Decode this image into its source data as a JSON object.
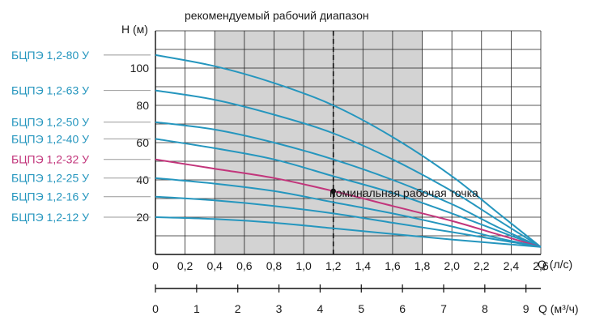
{
  "chart_data": {
    "type": "line",
    "title": "рекомендуемый рабочий диапазон",
    "ylabel": "H (м)",
    "xlabel": "Q (л/с)",
    "x2label": "Q (м³/ч)",
    "xlim": [
      0,
      2.6
    ],
    "ylim": [
      0,
      120
    ],
    "x_ticks": [
      "0",
      "0,2",
      "0,4",
      "0,6",
      "0,8",
      "1,0",
      "1,2",
      "1,4",
      "1,6",
      "1,8",
      "2,0",
      "2,2",
      "2,4",
      "2,6"
    ],
    "y_ticks": [
      "20",
      "40",
      "60",
      "80",
      "100"
    ],
    "y_tick_values": [
      20,
      40,
      60,
      80,
      100
    ],
    "x2_ticks": [
      "0",
      "1",
      "2",
      "3",
      "4",
      "5",
      "6",
      "7",
      "8",
      "9"
    ],
    "recommended_range": [
      0.4,
      1.8
    ],
    "nominal_flow": 1.2,
    "nominal_point": {
      "x": 1.2,
      "y": 34,
      "label": "номинальная рабочая точка"
    },
    "grid": true,
    "colors": {
      "series": "#2596be",
      "highlight": "#c2357b",
      "range_fill": "#d3d3d3"
    },
    "series": [
      {
        "name": "БЦПЭ 1,2-80 У",
        "label_y": 107,
        "highlight": false,
        "points": [
          [
            0,
            107
          ],
          [
            0.4,
            101
          ],
          [
            0.8,
            92
          ],
          [
            1.2,
            80
          ],
          [
            1.6,
            63
          ],
          [
            2.0,
            42
          ],
          [
            2.3,
            23
          ],
          [
            2.6,
            4
          ]
        ]
      },
      {
        "name": "БЦПЭ 1,2-63 У",
        "label_y": 88,
        "highlight": false,
        "points": [
          [
            0,
            88
          ],
          [
            0.4,
            83
          ],
          [
            0.8,
            75
          ],
          [
            1.2,
            65
          ],
          [
            1.6,
            51
          ],
          [
            2.0,
            34
          ],
          [
            2.3,
            19
          ],
          [
            2.6,
            4
          ]
        ]
      },
      {
        "name": "БЦПЭ 1,2-50 У",
        "label_y": 71,
        "highlight": false,
        "points": [
          [
            0,
            71
          ],
          [
            0.4,
            67
          ],
          [
            0.8,
            60
          ],
          [
            1.2,
            51
          ],
          [
            1.6,
            40
          ],
          [
            2.0,
            27
          ],
          [
            2.3,
            15
          ],
          [
            2.6,
            4
          ]
        ]
      },
      {
        "name": "БЦПЭ 1,2-40 У",
        "label_y": 62,
        "highlight": false,
        "points": [
          [
            0,
            62
          ],
          [
            0.4,
            57
          ],
          [
            0.8,
            51
          ],
          [
            1.2,
            42
          ],
          [
            1.6,
            33
          ],
          [
            2.0,
            22
          ],
          [
            2.3,
            13
          ],
          [
            2.6,
            4
          ]
        ]
      },
      {
        "name": "БЦПЭ 1,2-32 У",
        "label_y": 51,
        "highlight": true,
        "points": [
          [
            0,
            51
          ],
          [
            0.4,
            46
          ],
          [
            0.8,
            41
          ],
          [
            1.2,
            34
          ],
          [
            1.6,
            26
          ],
          [
            2.0,
            18
          ],
          [
            2.3,
            11
          ],
          [
            2.6,
            4
          ]
        ]
      },
      {
        "name": "БЦПЭ 1,2-25 У",
        "label_y": 41,
        "highlight": false,
        "points": [
          [
            0,
            41
          ],
          [
            0.4,
            38
          ],
          [
            0.8,
            34
          ],
          [
            1.2,
            28
          ],
          [
            1.6,
            22
          ],
          [
            2.0,
            15
          ],
          [
            2.3,
            9
          ],
          [
            2.6,
            4
          ]
        ]
      },
      {
        "name": "БЦПЭ 1,2-16 У",
        "label_y": 31,
        "highlight": false,
        "points": [
          [
            0,
            31
          ],
          [
            0.4,
            29
          ],
          [
            0.8,
            26
          ],
          [
            1.2,
            22
          ],
          [
            1.6,
            17
          ],
          [
            2.0,
            12
          ],
          [
            2.3,
            8
          ],
          [
            2.6,
            4
          ]
        ]
      },
      {
        "name": "БЦПЭ 1,2-12 У",
        "label_y": 20,
        "highlight": false,
        "points": [
          [
            0,
            20
          ],
          [
            0.4,
            19
          ],
          [
            0.8,
            17
          ],
          [
            1.2,
            14
          ],
          [
            1.6,
            11
          ],
          [
            2.0,
            8
          ],
          [
            2.3,
            6
          ],
          [
            2.6,
            4
          ]
        ]
      }
    ]
  }
}
